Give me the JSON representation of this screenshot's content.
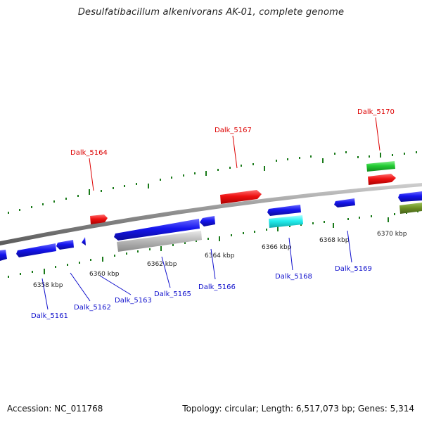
{
  "title": "Desulfatibacillum alkenivorans AK-01, complete genome",
  "footer": {
    "accession": "Accession: NC_011768",
    "summary": "Topology: circular; Length: 6,517,073 bp; Genes: 5,314"
  },
  "colors": {
    "backbone": "#9a9a9a",
    "tick": "#1a7a1a",
    "strand_label_plus": "#dd0000",
    "strand_label_minus": "#1010cc",
    "kbp_label": "#222222"
  },
  "scale_labels": [
    "6358 kbp",
    "6360 kbp",
    "6362 kbp",
    "6364 kbp",
    "6366 kbp",
    "6368 kbp",
    "6370 kbp"
  ],
  "gene_labels": {
    "plus": [
      "Dalk_5164",
      "Dalk_5167",
      "Dalk_5170"
    ],
    "minus": [
      "Dalk_5161",
      "Dalk_5162",
      "Dalk_5163",
      "Dalk_5165",
      "Dalk_5166",
      "Dalk_5168",
      "Dalk_5169"
    ]
  },
  "feature_colors": {
    "cds_minus": "#1515ee",
    "cds_plus": "#ee1111",
    "rna": "#22cc33",
    "pseudo": "#b5b5b5",
    "cyan_feature": "#22eeee",
    "olive_feature": "#6b8e23"
  }
}
